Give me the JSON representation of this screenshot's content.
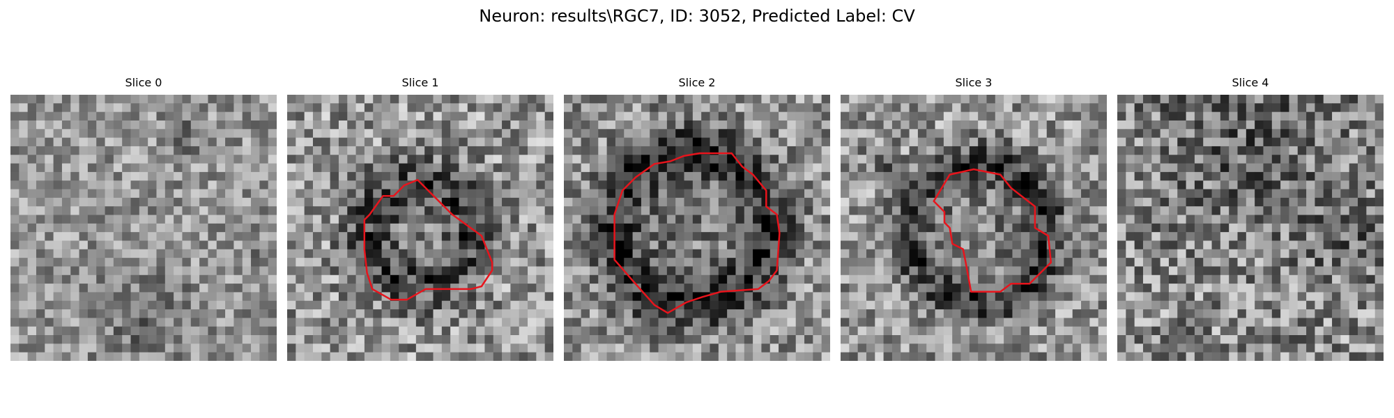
{
  "figure": {
    "title": "Neuron: results\\RGC7, ID: 3052, Predicted Label: CV",
    "contour_color": "#e8141c",
    "colormap": "gray"
  },
  "slices": [
    {
      "title": "Slice 0",
      "has_contour": false
    },
    {
      "title": "Slice 1",
      "has_contour": true
    },
    {
      "title": "Slice 2",
      "has_contour": true
    },
    {
      "title": "Slice 3",
      "has_contour": true
    },
    {
      "title": "Slice 4",
      "has_contour": false
    }
  ]
}
